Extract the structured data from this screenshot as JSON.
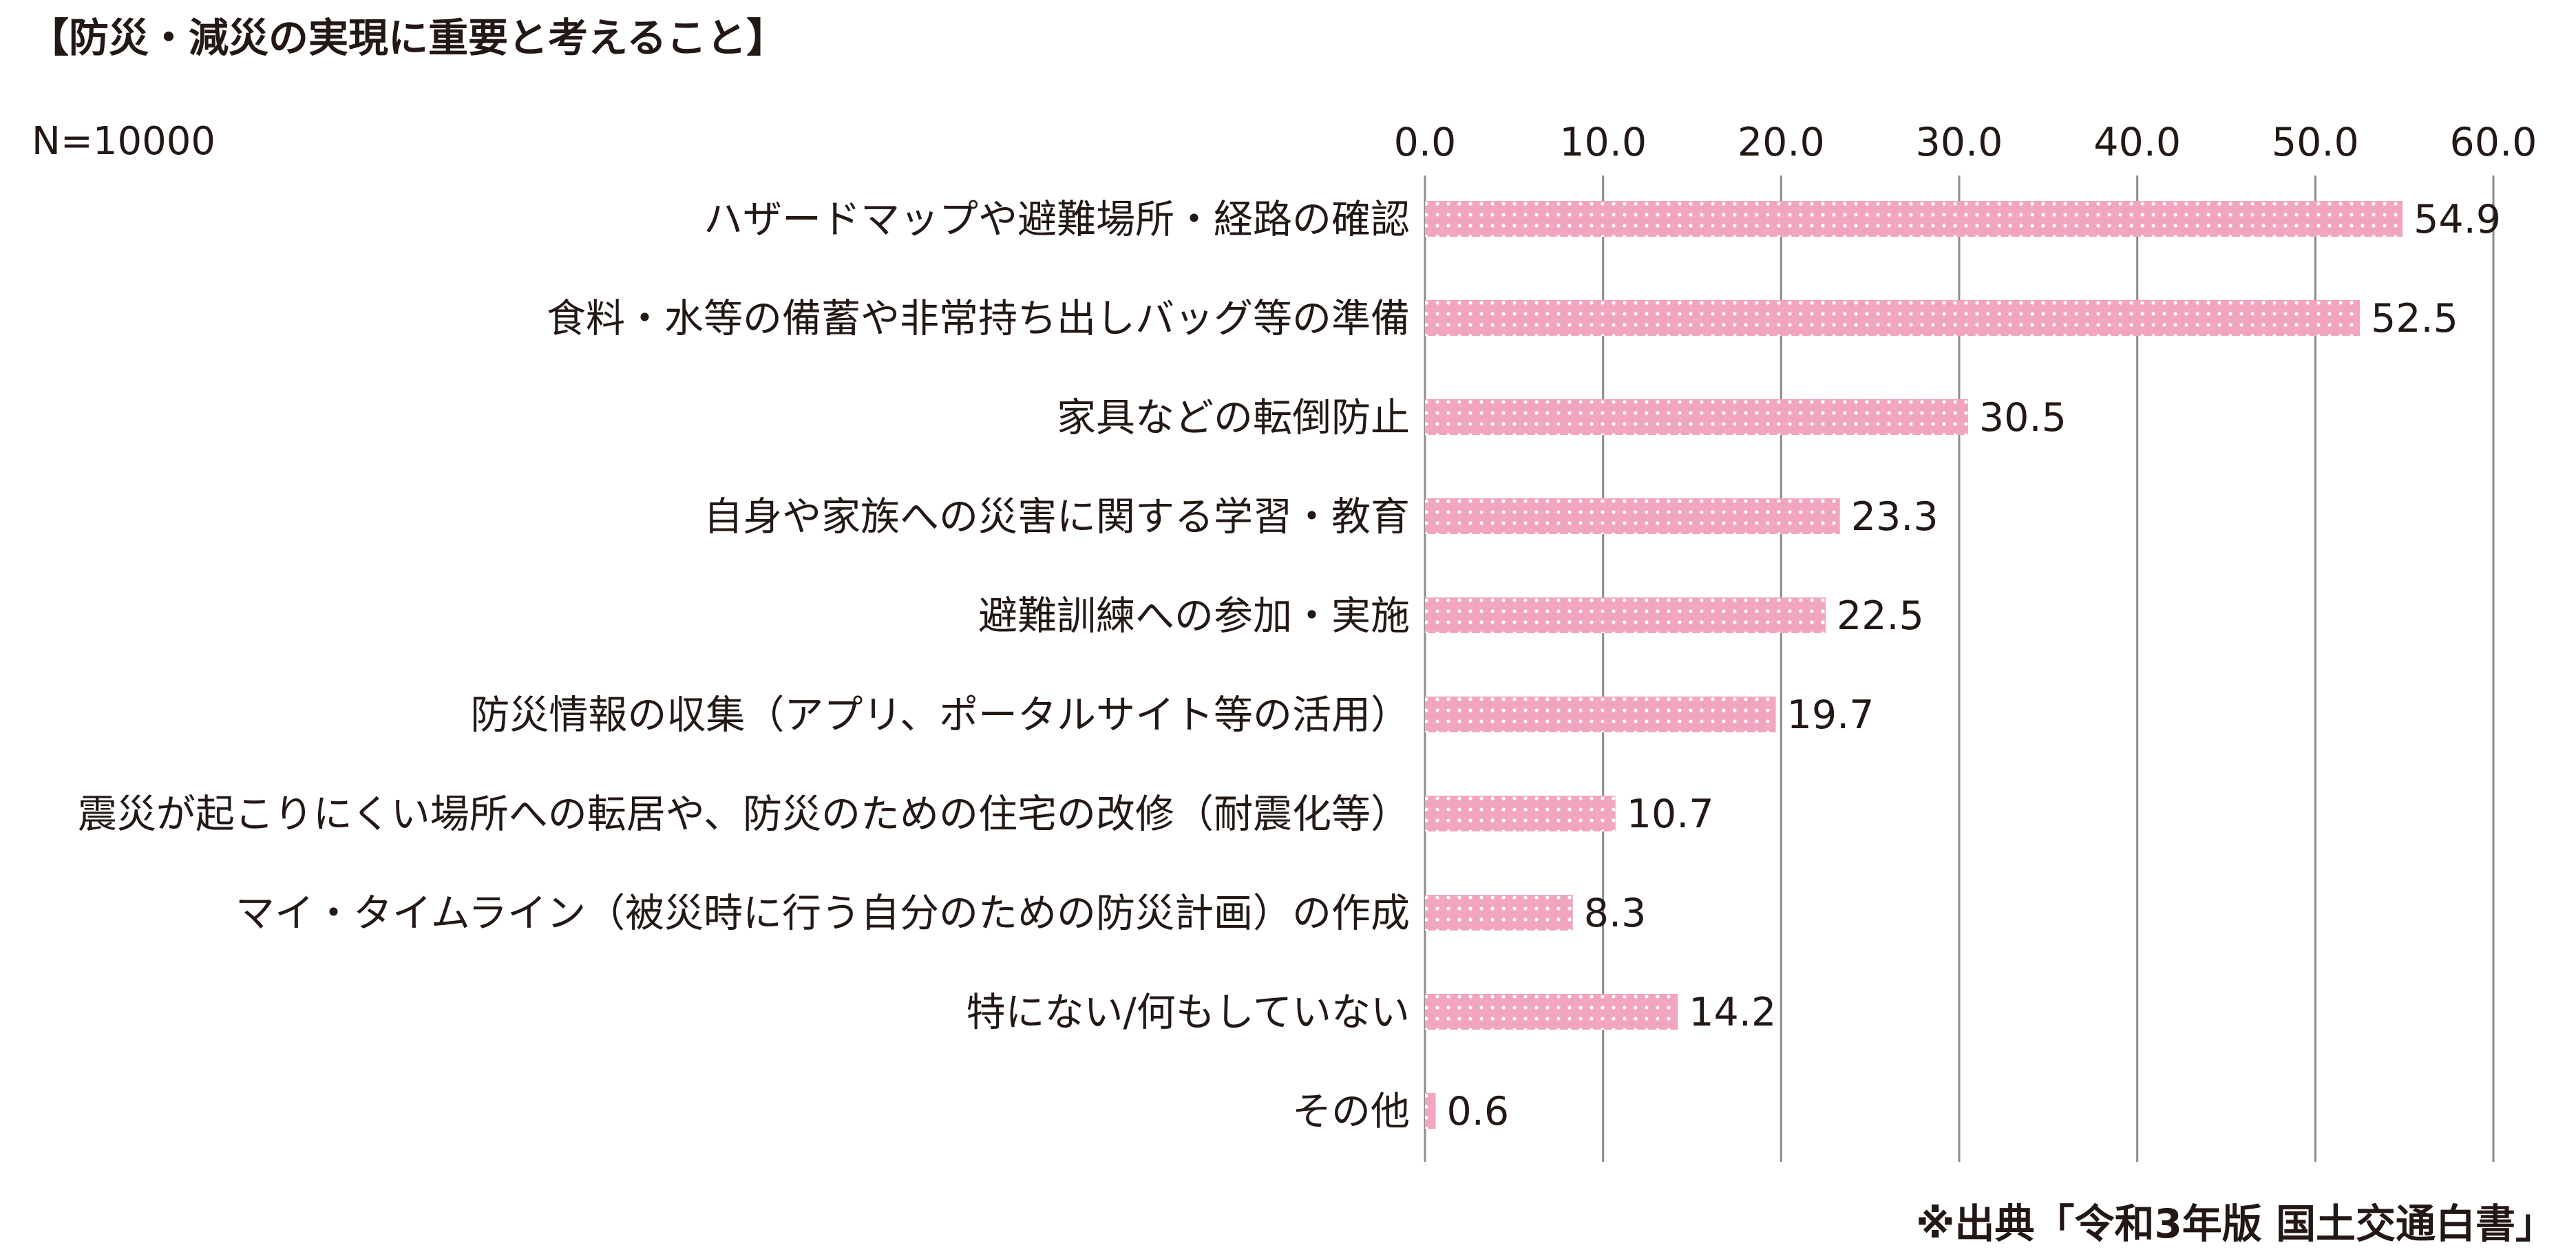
{
  "chart_data": {
    "type": "bar",
    "orientation": "horizontal",
    "title": "【防災・減災の実現に重要と考えること】",
    "sample_size": "N=10000",
    "source": "※出典「令和3年版 国土交通白書」",
    "xlim": [
      0,
      60
    ],
    "ticks": [
      "0.0",
      "10.0",
      "20.0",
      "30.0",
      "40.0",
      "50.0",
      "60.0"
    ],
    "categories": [
      "ハザードマップや避難場所・経路の確認",
      "食料・水等の備蓄や非常持ち出しバッグ等の準備",
      "家具などの転倒防止",
      "自身や家族への災害に関する学習・教育",
      "避難訓練への参加・実施",
      "防災情報の収集（アプリ、ポータルサイト等の活用）",
      "震災が起こりにくい場所への転居や、防災のための住宅の改修（耐震化等）",
      "マイ・タイムライン（被災時に行う自分のための防災計画）の作成",
      "特にない/何もしていない",
      "その他"
    ],
    "values": [
      54.9,
      52.5,
      30.5,
      23.3,
      22.5,
      19.7,
      10.7,
      8.3,
      14.2,
      0.6
    ],
    "value_labels": [
      "54.9",
      "52.5",
      "30.5",
      "23.3",
      "22.5",
      "19.7",
      "10.7",
      "8.3",
      "14.2",
      "0.6"
    ],
    "colors": {
      "bar": "#f2a5c0",
      "dot": "#ffffff",
      "grid": "#8c8c8c",
      "text": "#231815"
    }
  }
}
